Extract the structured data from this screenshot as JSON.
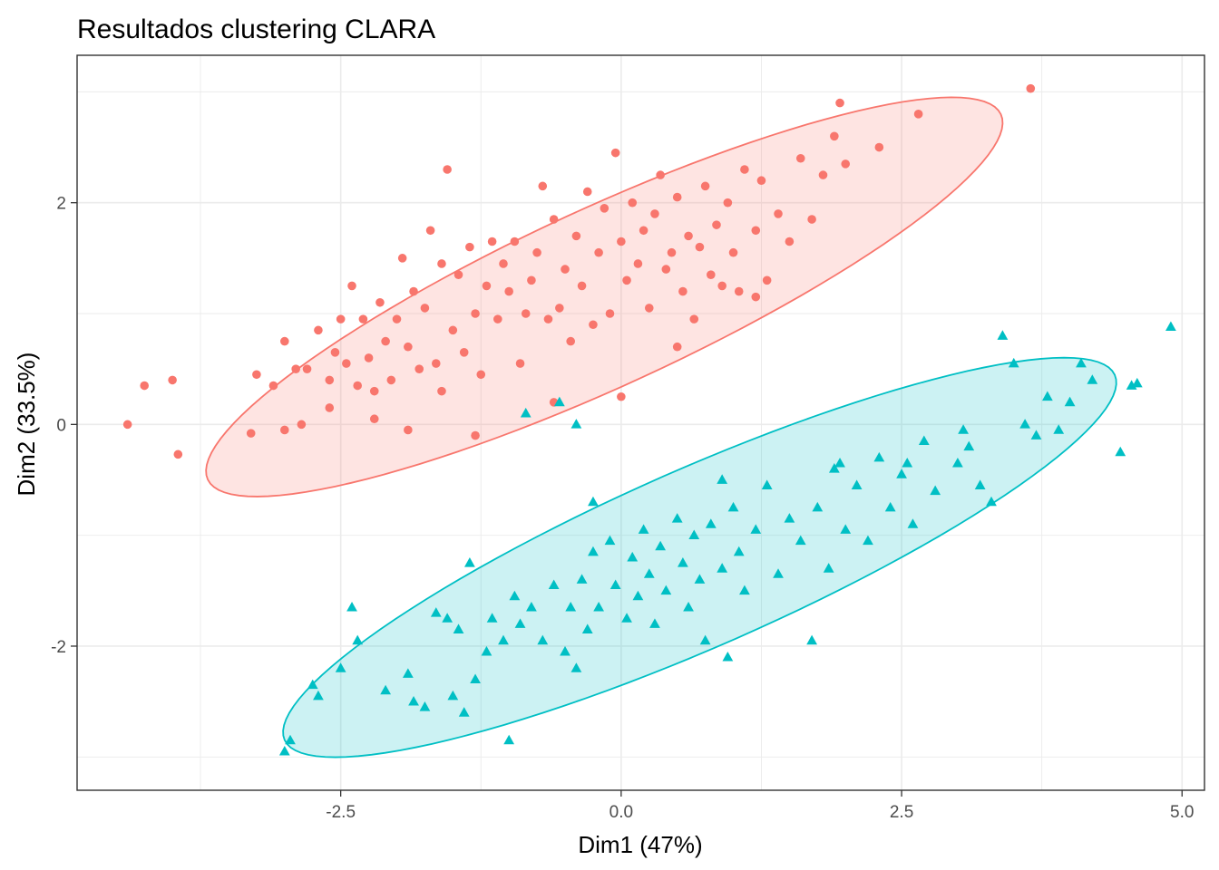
{
  "chart_data": {
    "type": "scatter",
    "title": "Resultados clustering CLARA",
    "xlabel": "Dim1 (47%)",
    "ylabel": "Dim2 (33.5%)",
    "xlim": [
      -4.85,
      5.2
    ],
    "ylim": [
      -3.3,
      3.33
    ],
    "xticks": [
      -2.5,
      0.0,
      2.5,
      5.0
    ],
    "xtick_labels": [
      "-2.5",
      "0.0",
      "2.5",
      "5.0"
    ],
    "yticks": [
      -2,
      0,
      2
    ],
    "ytick_labels": [
      "-2",
      "0",
      "2"
    ],
    "grid": true,
    "legend": "none",
    "series": [
      {
        "marker": "circle",
        "color": "#F8766D",
        "ellipse": {
          "center": [
            -0.15,
            1.15
          ],
          "semi_major": 3.9,
          "semi_minor": 0.8,
          "angle_deg": 25
        },
        "points": [
          [
            -4.4,
            0.0
          ],
          [
            -4.25,
            0.35
          ],
          [
            -4.0,
            0.4
          ],
          [
            -3.95,
            -0.27
          ],
          [
            -3.3,
            -0.08
          ],
          [
            -3.25,
            0.45
          ],
          [
            -3.1,
            0.35
          ],
          [
            -3.0,
            0.75
          ],
          [
            -2.9,
            0.5
          ],
          [
            -2.85,
            0.0
          ],
          [
            -2.8,
            0.5
          ],
          [
            -2.7,
            0.85
          ],
          [
            -2.6,
            0.4
          ],
          [
            -2.55,
            0.65
          ],
          [
            -2.5,
            0.95
          ],
          [
            -2.45,
            0.55
          ],
          [
            -2.4,
            1.25
          ],
          [
            -2.35,
            0.35
          ],
          [
            -2.3,
            0.95
          ],
          [
            -2.25,
            0.6
          ],
          [
            -2.2,
            0.3
          ],
          [
            -2.15,
            1.1
          ],
          [
            -2.1,
            0.75
          ],
          [
            -2.05,
            0.4
          ],
          [
            -2.0,
            0.95
          ],
          [
            -1.95,
            1.5
          ],
          [
            -1.9,
            0.7
          ],
          [
            -1.85,
            1.2
          ],
          [
            -1.8,
            0.5
          ],
          [
            -1.75,
            1.05
          ],
          [
            -1.7,
            1.75
          ],
          [
            -1.65,
            0.55
          ],
          [
            -1.6,
            1.45
          ],
          [
            -1.55,
            2.3
          ],
          [
            -1.5,
            0.85
          ],
          [
            -1.45,
            1.35
          ],
          [
            -1.4,
            0.65
          ],
          [
            -1.35,
            1.6
          ],
          [
            -1.3,
            1.0
          ],
          [
            -1.25,
            0.45
          ],
          [
            -1.2,
            1.25
          ],
          [
            -1.15,
            1.65
          ],
          [
            -1.1,
            0.95
          ],
          [
            -1.05,
            1.45
          ],
          [
            -1.0,
            1.2
          ],
          [
            -0.95,
            1.65
          ],
          [
            -0.9,
            0.55
          ],
          [
            -0.85,
            1.0
          ],
          [
            -0.8,
            1.3
          ],
          [
            -0.75,
            1.55
          ],
          [
            -0.7,
            2.15
          ],
          [
            -0.65,
            0.95
          ],
          [
            -0.6,
            1.85
          ],
          [
            -0.55,
            1.05
          ],
          [
            -0.5,
            1.4
          ],
          [
            -0.45,
            0.75
          ],
          [
            -0.4,
            1.7
          ],
          [
            -0.35,
            1.25
          ],
          [
            -0.3,
            2.1
          ],
          [
            -0.25,
            0.9
          ],
          [
            -0.2,
            1.55
          ],
          [
            -0.15,
            1.95
          ],
          [
            -0.1,
            1.0
          ],
          [
            -0.05,
            2.45
          ],
          [
            0.0,
            1.65
          ],
          [
            0.05,
            1.3
          ],
          [
            0.1,
            2.0
          ],
          [
            0.15,
            1.45
          ],
          [
            0.2,
            1.75
          ],
          [
            0.25,
            1.05
          ],
          [
            0.3,
            1.9
          ],
          [
            0.35,
            2.25
          ],
          [
            0.4,
            1.4
          ],
          [
            0.45,
            1.55
          ],
          [
            0.5,
            2.05
          ],
          [
            0.55,
            1.2
          ],
          [
            0.6,
            1.7
          ],
          [
            0.65,
            0.95
          ],
          [
            0.7,
            1.6
          ],
          [
            0.75,
            2.15
          ],
          [
            0.8,
            1.35
          ],
          [
            0.85,
            1.8
          ],
          [
            0.9,
            1.25
          ],
          [
            0.95,
            2.0
          ],
          [
            1.0,
            1.55
          ],
          [
            1.05,
            1.2
          ],
          [
            1.1,
            2.3
          ],
          [
            1.2,
            1.75
          ],
          [
            1.25,
            2.2
          ],
          [
            1.3,
            1.3
          ],
          [
            1.4,
            1.9
          ],
          [
            1.5,
            1.65
          ],
          [
            1.6,
            2.4
          ],
          [
            1.7,
            1.85
          ],
          [
            1.8,
            2.25
          ],
          [
            1.9,
            2.6
          ],
          [
            1.95,
            2.9
          ],
          [
            2.0,
            2.35
          ],
          [
            2.3,
            2.5
          ],
          [
            2.65,
            2.8
          ],
          [
            3.65,
            3.03
          ],
          [
            0.5,
            0.7
          ],
          [
            -0.6,
            0.2
          ],
          [
            -1.3,
            -0.1
          ],
          [
            0.0,
            0.25
          ],
          [
            -1.6,
            0.3
          ],
          [
            -2.2,
            0.05
          ],
          [
            -2.6,
            0.15
          ],
          [
            -3.0,
            -0.05
          ],
          [
            -1.9,
            -0.05
          ],
          [
            1.2,
            1.15
          ]
        ]
      },
      {
        "marker": "triangle",
        "color": "#00BFC4",
        "ellipse": {
          "center": [
            0.7,
            -1.2
          ],
          "semi_major": 4.05,
          "semi_minor": 0.8,
          "angle_deg": 24
        },
        "points": [
          [
            -3.0,
            -2.95
          ],
          [
            -2.95,
            -2.85
          ],
          [
            -2.75,
            -2.35
          ],
          [
            -2.7,
            -2.45
          ],
          [
            -2.5,
            -2.2
          ],
          [
            -2.4,
            -1.65
          ],
          [
            -2.35,
            -1.95
          ],
          [
            -2.1,
            -2.4
          ],
          [
            -1.9,
            -2.25
          ],
          [
            -1.85,
            -2.5
          ],
          [
            -1.75,
            -2.55
          ],
          [
            -1.65,
            -1.7
          ],
          [
            -1.55,
            -1.75
          ],
          [
            -1.5,
            -2.45
          ],
          [
            -1.45,
            -1.85
          ],
          [
            -1.4,
            -2.6
          ],
          [
            -1.35,
            -1.25
          ],
          [
            -1.3,
            -2.3
          ],
          [
            -1.2,
            -2.05
          ],
          [
            -1.15,
            -1.75
          ],
          [
            -1.05,
            -1.95
          ],
          [
            -1.0,
            -2.85
          ],
          [
            -0.95,
            -1.55
          ],
          [
            -0.9,
            -1.8
          ],
          [
            -0.8,
            -1.65
          ],
          [
            -0.7,
            -1.95
          ],
          [
            -0.6,
            -1.45
          ],
          [
            -0.5,
            -2.05
          ],
          [
            -0.45,
            -1.65
          ],
          [
            -0.4,
            -2.2
          ],
          [
            -0.35,
            -1.4
          ],
          [
            -0.3,
            -1.85
          ],
          [
            -0.25,
            -1.15
          ],
          [
            -0.2,
            -1.65
          ],
          [
            -0.1,
            -1.05
          ],
          [
            -0.05,
            -1.45
          ],
          [
            0.05,
            -1.75
          ],
          [
            0.1,
            -1.2
          ],
          [
            0.15,
            -1.55
          ],
          [
            0.2,
            -0.95
          ],
          [
            0.25,
            -1.35
          ],
          [
            0.3,
            -1.8
          ],
          [
            0.35,
            -1.1
          ],
          [
            0.4,
            -1.5
          ],
          [
            0.5,
            -0.85
          ],
          [
            0.55,
            -1.25
          ],
          [
            0.6,
            -1.65
          ],
          [
            0.65,
            -1.0
          ],
          [
            0.7,
            -1.4
          ],
          [
            0.75,
            -1.95
          ],
          [
            0.8,
            -0.9
          ],
          [
            0.9,
            -1.3
          ],
          [
            0.95,
            -2.1
          ],
          [
            1.0,
            -0.75
          ],
          [
            1.05,
            -1.15
          ],
          [
            1.1,
            -1.5
          ],
          [
            1.2,
            -0.95
          ],
          [
            1.3,
            -0.55
          ],
          [
            1.4,
            -1.35
          ],
          [
            1.5,
            -0.85
          ],
          [
            1.6,
            -1.05
          ],
          [
            1.7,
            -1.95
          ],
          [
            1.75,
            -0.75
          ],
          [
            1.85,
            -1.3
          ],
          [
            1.9,
            -0.4
          ],
          [
            2.0,
            -0.95
          ],
          [
            2.1,
            -0.55
          ],
          [
            2.2,
            -1.05
          ],
          [
            2.3,
            -0.3
          ],
          [
            2.4,
            -0.75
          ],
          [
            2.5,
            -0.45
          ],
          [
            2.6,
            -0.9
          ],
          [
            2.7,
            -0.15
          ],
          [
            2.8,
            -0.6
          ],
          [
            3.0,
            -0.35
          ],
          [
            3.1,
            -0.2
          ],
          [
            3.2,
            -0.55
          ],
          [
            3.3,
            -0.7
          ],
          [
            3.4,
            0.8
          ],
          [
            3.5,
            0.55
          ],
          [
            3.6,
            0.0
          ],
          [
            3.7,
            -0.1
          ],
          [
            3.8,
            0.25
          ],
          [
            3.9,
            -0.05
          ],
          [
            4.0,
            0.2
          ],
          [
            4.1,
            0.55
          ],
          [
            4.2,
            0.4
          ],
          [
            4.45,
            -0.25
          ],
          [
            4.55,
            0.35
          ],
          [
            4.6,
            0.37
          ],
          [
            4.9,
            0.88
          ],
          [
            -0.55,
            0.2
          ],
          [
            -0.85,
            0.1
          ],
          [
            -0.4,
            0.0
          ],
          [
            -0.25,
            -0.7
          ],
          [
            0.9,
            -0.5
          ],
          [
            1.95,
            -0.35
          ],
          [
            2.55,
            -0.35
          ],
          [
            3.05,
            -0.05
          ]
        ]
      }
    ]
  }
}
